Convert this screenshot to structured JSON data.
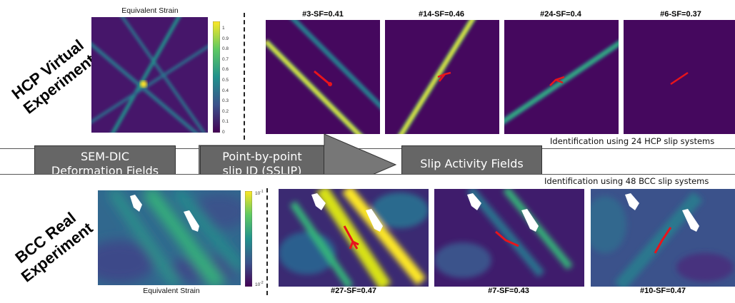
{
  "hcp": {
    "section_label_line1": "HCP Virtual",
    "section_label_line2": "Experiment",
    "strain_title": "Equivalent Strain",
    "colorbar_ticks": [
      "1",
      "0.9",
      "0.8",
      "0.7",
      "0.6",
      "0.5",
      "0.4",
      "0.3",
      "0.2",
      "0.1",
      "0"
    ],
    "panels": [
      {
        "title": "#3-SF=0.41"
      },
      {
        "title": "#14-SF=0.46"
      },
      {
        "title": "#24-SF=0.4"
      },
      {
        "title": "#6-SF=0.37"
      }
    ],
    "identification_note": "Identification using 24 HCP slip systems"
  },
  "flow": {
    "box1_line1": "SEM-DIC",
    "box1_line2": "Deformation Fields",
    "box2_line1": "Point-by-point",
    "box2_line2": "slip ID (SSLIP)",
    "box3": "Slip Activity Fields"
  },
  "bcc": {
    "section_label_line1": "BCC Real",
    "section_label_line2": "Experiment",
    "strain_title": "Equivalent Strain",
    "colorbar_top": "10",
    "colorbar_top_exp": "-1",
    "colorbar_bottom": "10",
    "colorbar_bottom_exp": "-2",
    "panels": [
      {
        "title": "#27-SF=0.47"
      },
      {
        "title": "#7-SF=0.43"
      },
      {
        "title": "#10-SF=0.47"
      }
    ],
    "identification_note": "Identification using 48 BCC slip systems"
  },
  "colors": {
    "viridis_low": "#440154",
    "viridis_mid": "#21918c",
    "viridis_high": "#fde725",
    "trace": "#e8141c",
    "box_fill": "#666666"
  }
}
